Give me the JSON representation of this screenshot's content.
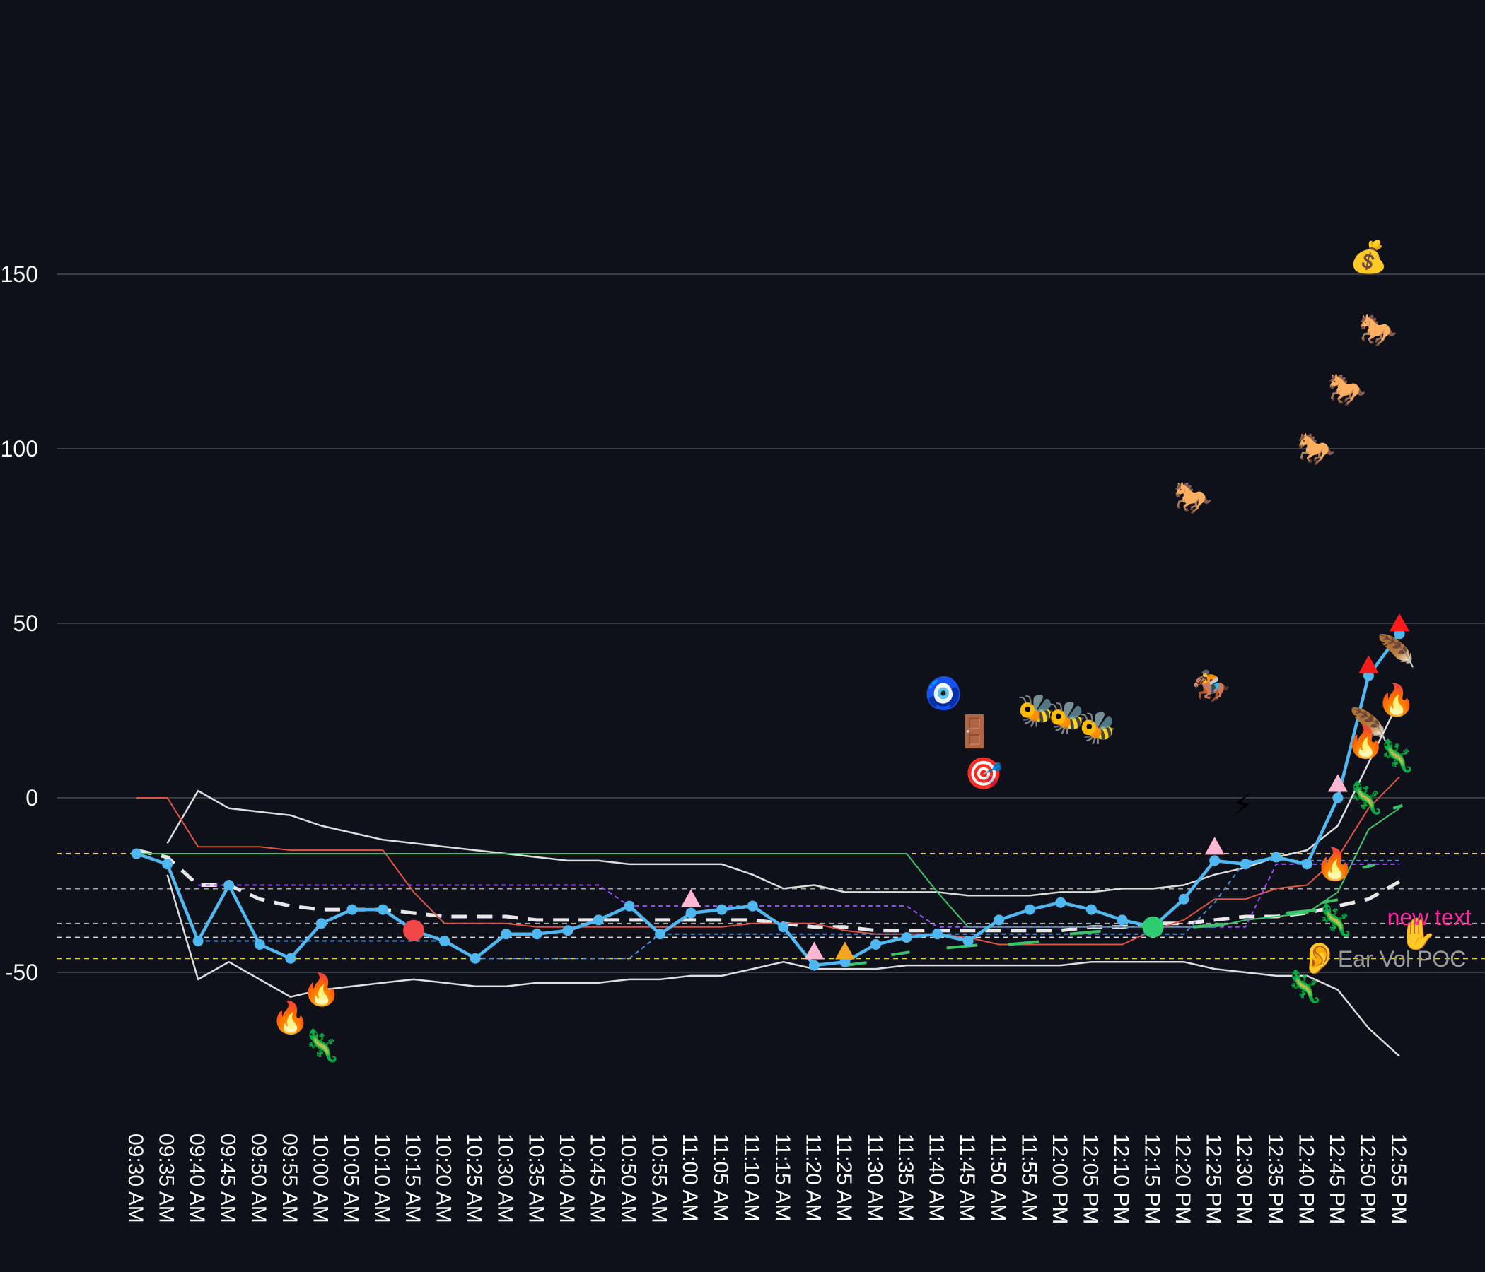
{
  "chart_data": {
    "type": "line",
    "title": "",
    "xlabel": "",
    "ylabel": "",
    "ylim": [
      -95,
      215
    ],
    "yticks": [
      150,
      100,
      50,
      0,
      -50
    ],
    "grid": true,
    "x": [
      "09:30 AM",
      "09:35 AM",
      "09:40 AM",
      "09:45 AM",
      "09:50 AM",
      "09:55 AM",
      "10:00 AM",
      "10:05 AM",
      "10:10 AM",
      "10:15 AM",
      "10:20 AM",
      "10:25 AM",
      "10:30 AM",
      "10:35 AM",
      "10:40 AM",
      "10:45 AM",
      "10:50 AM",
      "10:55 AM",
      "11:00 AM",
      "11:05 AM",
      "11:10 AM",
      "11:15 AM",
      "11:20 AM",
      "11:25 AM",
      "11:30 AM",
      "11:35 AM",
      "11:40 AM",
      "11:45 AM",
      "11:50 AM",
      "11:55 AM",
      "12:00 PM",
      "12:05 PM",
      "12:10 PM",
      "12:15 PM",
      "12:20 PM",
      "12:25 PM",
      "12:30 PM",
      "12:35 PM",
      "12:40 PM",
      "12:45 PM",
      "12:50 PM",
      "12:55 PM"
    ],
    "series": [
      {
        "color": "#4fb8f0",
        "style": "main",
        "values": [
          -16,
          -19,
          -41,
          -25,
          -42,
          -46,
          -36,
          -32,
          -32,
          -38,
          -41,
          -46,
          -39,
          -39,
          -38,
          -35,
          -31,
          -39,
          -33,
          -32,
          -31,
          -37,
          -48,
          -47,
          -42,
          -40,
          -39,
          -41,
          -35,
          -32,
          -30,
          -32,
          -35,
          -37,
          -29,
          -18,
          -19,
          -17,
          -19,
          0,
          35,
          47
        ]
      },
      {
        "color": "#dddddd",
        "style": "upper-band",
        "values": [
          null,
          -13,
          2,
          -3,
          -4,
          -5,
          -8,
          -10,
          -12,
          -13,
          -14,
          -15,
          -16,
          -17,
          -18,
          -18,
          -19,
          -19,
          -19,
          -19,
          -22,
          -26,
          -25,
          -27,
          -27,
          -27,
          -27,
          -28,
          -28,
          -28,
          -27,
          -27,
          -26,
          -26,
          -25,
          -22,
          -20,
          -17,
          -15,
          -8,
          10,
          28
        ]
      },
      {
        "color": "#dddddd",
        "style": "lower-band",
        "values": [
          null,
          -22,
          -52,
          -47,
          -52,
          -57,
          -55,
          -54,
          -53,
          -52,
          -53,
          -54,
          -54,
          -53,
          -53,
          -53,
          -52,
          -52,
          -51,
          -51,
          -49,
          -47,
          -49,
          -49,
          -49,
          -48,
          -48,
          -48,
          -48,
          -48,
          -48,
          -47,
          -47,
          -47,
          -47,
          -49,
          -50,
          -51,
          -51,
          -55,
          -66,
          -74
        ]
      },
      {
        "color": "#e05244",
        "style": "thin",
        "values": [
          0,
          0,
          -14,
          -14,
          -14,
          -15,
          -15,
          -15,
          -15,
          -27,
          -36,
          -36,
          -36,
          -37,
          -37,
          -37,
          -37,
          -37,
          -37,
          -37,
          -36,
          -36,
          -36,
          -38,
          -39,
          -39,
          -39,
          -40,
          -42,
          -42,
          -42,
          -42,
          -42,
          -38,
          -35,
          -29,
          -29,
          -26,
          -25,
          -17,
          -3,
          6
        ]
      },
      {
        "color": "#3ac46a",
        "style": "thin",
        "values": [
          -16,
          -16,
          -16,
          -16,
          -16,
          -16,
          -16,
          -16,
          -16,
          -16,
          -16,
          -16,
          -16,
          -16,
          -16,
          -16,
          -16,
          -16,
          -16,
          -16,
          -16,
          -16,
          -16,
          -16,
          -16,
          -16,
          -27,
          -37,
          -37,
          -37,
          -37,
          -37,
          -37,
          -37,
          -37,
          -37,
          -35,
          -34,
          -33,
          -27,
          -9,
          -3
        ]
      },
      {
        "color": "#9b4dff",
        "style": "dashed",
        "values": [
          null,
          null,
          -25,
          -25,
          -25,
          -25,
          -25,
          -25,
          -25,
          -25,
          -25,
          -25,
          -25,
          -25,
          -25,
          -25,
          -31,
          -31,
          -31,
          -31,
          -31,
          -31,
          -31,
          -31,
          -31,
          -31,
          -37,
          -37,
          -37,
          -37,
          -37,
          -37,
          -37,
          -37,
          -37,
          -37,
          -37,
          -19,
          -19,
          -19,
          -19,
          -19
        ]
      },
      {
        "color": "#4a8fd8",
        "style": "dashed",
        "values": [
          null,
          null,
          -41,
          -41,
          -41,
          -41,
          -41,
          -41,
          -41,
          -41,
          -41,
          -46,
          -46,
          -46,
          -46,
          -46,
          -46,
          -39,
          -39,
          -39,
          -39,
          -39,
          -39,
          -39,
          -39,
          -39,
          -39,
          -39,
          -39,
          -39,
          -39,
          -39,
          -39,
          -39,
          -39,
          -30,
          -18,
          -18,
          -18,
          -18,
          -18,
          -18
        ]
      },
      {
        "color": "#e8e8e8",
        "style": "thick-dashed",
        "values": [
          -15,
          -17,
          -25,
          -25,
          -29,
          -31,
          -32,
          -32,
          -32,
          -33,
          -34,
          -34,
          -34,
          -35,
          -35,
          -35,
          -35,
          -35,
          -35,
          -35,
          -35,
          -36,
          -37,
          -37,
          -38,
          -38,
          -38,
          -38,
          -38,
          -38,
          -38,
          -37,
          -37,
          -36,
          -36,
          -35,
          -34,
          -34,
          -33,
          -31,
          -29,
          -24
        ]
      }
    ],
    "hlines": [
      {
        "y": -16,
        "color": "#e8d62a"
      },
      {
        "y": -26,
        "color": "#aaaaaa"
      },
      {
        "y": -36,
        "color": "#aaaaaa"
      },
      {
        "y": -40,
        "color": "#dddddd"
      },
      {
        "y": -46,
        "color": "#e8d62a"
      }
    ],
    "segments": [
      {
        "x0": 23.0,
        "x1": 23.7,
        "y": -48,
        "color": "#3ac46a"
      },
      {
        "x0": 24.5,
        "x1": 25.1,
        "y": -45,
        "color": "#3ac46a"
      },
      {
        "x0": 26.3,
        "x1": 27.3,
        "y": -43,
        "color": "#3ac46a"
      },
      {
        "x0": 28.3,
        "x1": 29.3,
        "y": -42,
        "color": "#3ac46a"
      },
      {
        "x0": 30.3,
        "x1": 31.3,
        "y": -39,
        "color": "#3ac46a"
      },
      {
        "x0": 34.3,
        "x1": 35.3,
        "y": -37,
        "color": "#3ac46a"
      },
      {
        "x0": 37.3,
        "x1": 38.3,
        "y": -33,
        "color": "#3ac46a"
      },
      {
        "x0": 38.5,
        "x1": 39.0,
        "y": -30,
        "color": "#3ac46a"
      },
      {
        "x0": 39.8,
        "x1": 40.2,
        "y": -20,
        "color": "#3ac46a"
      },
      {
        "x0": 40.8,
        "x1": 41.1,
        "y": -3,
        "color": "#3ac46a"
      }
    ],
    "markers": [
      {
        "x": 9,
        "y": -38,
        "shape": "circle",
        "color": "#f04848"
      },
      {
        "x": 33,
        "y": -37,
        "shape": "circle",
        "color": "#2ecc71"
      },
      {
        "x": 18,
        "y": -29,
        "shape": "triangle",
        "color": "#ffb6d0"
      },
      {
        "x": 22,
        "y": -44,
        "shape": "triangle",
        "color": "#ffb6d0"
      },
      {
        "x": 23,
        "y": -44,
        "shape": "triangle",
        "color": "#f5a623"
      },
      {
        "x": 35,
        "y": -14,
        "shape": "triangle",
        "color": "#ffb6d0"
      },
      {
        "x": 39,
        "y": 4,
        "shape": "triangle",
        "color": "#ffb6d0"
      },
      {
        "x": 40,
        "y": 38,
        "shape": "triangle",
        "color": "#ff1a1a"
      },
      {
        "x": 41,
        "y": 50,
        "shape": "triangle",
        "color": "#ff1a1a"
      }
    ],
    "annotations": [
      {
        "x": 5,
        "y": -63,
        "icon": "fire-icon",
        "glyph": "🔥"
      },
      {
        "x": 6,
        "y": -55,
        "icon": "fire-icon",
        "glyph": "🔥"
      },
      {
        "x": 6,
        "y": -71,
        "icon": "lizard-icon",
        "glyph": "🦎"
      },
      {
        "x": 26.2,
        "y": 30,
        "icon": "evil-eye-icon",
        "glyph": "🧿"
      },
      {
        "x": 27.2,
        "y": 19,
        "icon": "door-icon",
        "glyph": "🚪"
      },
      {
        "x": 27.5,
        "y": 7,
        "icon": "dart-target-icon",
        "glyph": "🎯"
      },
      {
        "x": 29.2,
        "y": 25,
        "icon": "bee-icon",
        "glyph": "🐝"
      },
      {
        "x": 30.2,
        "y": 23,
        "icon": "bee-icon",
        "glyph": "🐝"
      },
      {
        "x": 31.2,
        "y": 20,
        "icon": "bee-icon",
        "glyph": "🐝"
      },
      {
        "x": 34.3,
        "y": 86,
        "icon": "horse-icon",
        "glyph": "🐎"
      },
      {
        "x": 38.3,
        "y": 100,
        "icon": "horse-icon",
        "glyph": "🐎"
      },
      {
        "x": 39.3,
        "y": 117,
        "icon": "horse-icon",
        "glyph": "🐎"
      },
      {
        "x": 40.3,
        "y": 134,
        "icon": "horse-icon",
        "glyph": "🐎"
      },
      {
        "x": 40.0,
        "y": 155,
        "icon": "money-bag-icon",
        "glyph": "💰"
      },
      {
        "x": 34.9,
        "y": 32,
        "icon": "horse-racing-icon",
        "glyph": "🏇"
      },
      {
        "x": 35.9,
        "y": -2,
        "icon": "lightning-icon",
        "glyph": "⚡"
      },
      {
        "x": 40.9,
        "y": 42,
        "icon": "feather-icon",
        "glyph": "🪶"
      },
      {
        "x": 40.0,
        "y": 21,
        "icon": "feather-icon",
        "glyph": "🪶"
      },
      {
        "x": 40.9,
        "y": 28,
        "icon": "fire-icon",
        "glyph": "🔥"
      },
      {
        "x": 39.9,
        "y": 16,
        "icon": "fire-icon",
        "glyph": "🔥"
      },
      {
        "x": 38.9,
        "y": -19,
        "icon": "fire-icon",
        "glyph": "🔥"
      },
      {
        "x": 40.9,
        "y": 12,
        "icon": "lizard-icon",
        "glyph": "🦎"
      },
      {
        "x": 39.9,
        "y": 0,
        "icon": "lizard-icon",
        "glyph": "🦎"
      },
      {
        "x": 38.9,
        "y": -35,
        "icon": "lizard-icon",
        "glyph": "🦎"
      },
      {
        "x": 37.9,
        "y": -54,
        "icon": "lizard-icon",
        "glyph": "🦎"
      },
      {
        "x": 41.6,
        "y": -39,
        "icon": "hand-icon",
        "glyph": "✋"
      },
      {
        "x": 38.4,
        "y": -46,
        "icon": "ear-icon",
        "glyph": "👂"
      }
    ],
    "text_annotations": [
      {
        "x": 40.6,
        "y": -34,
        "text": "new text",
        "color": "#ff2aa0"
      },
      {
        "x": 39.0,
        "y": -46,
        "text": "Ear Vol POC",
        "color": "#9a9a9a"
      }
    ]
  }
}
